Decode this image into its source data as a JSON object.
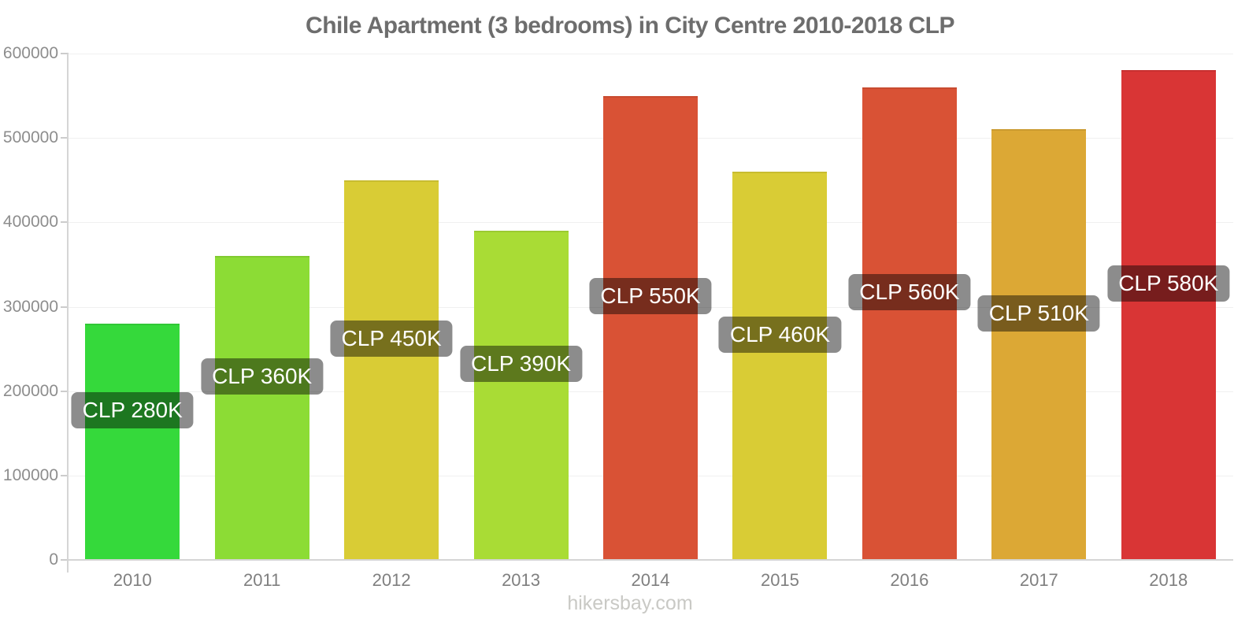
{
  "page": {
    "footer": "hikersbay.com"
  },
  "chart_data": {
    "type": "bar",
    "title": "Chile Apartment (3 bedrooms) in City Centre 2010-2018 CLP",
    "xlabel": "",
    "ylabel": "",
    "categories": [
      "2010",
      "2011",
      "2012",
      "2013",
      "2014",
      "2015",
      "2016",
      "2017",
      "2018"
    ],
    "values": [
      280000,
      360000,
      450000,
      390000,
      550000,
      460000,
      560000,
      510000,
      580000
    ],
    "bar_labels": [
      "CLP 280K",
      "CLP 360K",
      "CLP 450K",
      "CLP 390K",
      "CLP 550K",
      "CLP 460K",
      "CLP 560K",
      "CLP 510K",
      "CLP 580K"
    ],
    "bar_colors": [
      "#35d93b",
      "#8cdc35",
      "#d9cc35",
      "#a9dc35",
      "#d95235",
      "#d9cc35",
      "#d95235",
      "#dca835",
      "#d93535"
    ],
    "currency": "CLP",
    "ylim": [
      0,
      600000
    ],
    "yticks": [
      0,
      100000,
      200000,
      300000,
      400000,
      500000,
      600000
    ],
    "grid": "horizontal-light",
    "legend_position": "none",
    "styles": {
      "background": "#ffffff",
      "title_color": "#6d6d6d",
      "axis_line_color": "#d5d5d5",
      "gridline_color": "#f0f0f0",
      "tick_color": "#cccccc",
      "y_tick_label_color": "#8d8d8d",
      "x_tick_label_color": "#7f7f7f",
      "badge_bg": "rgba(0,0,0,0.45)",
      "badge_text_color": "#ffffff",
      "footer_color": "#c9c9c5"
    }
  }
}
